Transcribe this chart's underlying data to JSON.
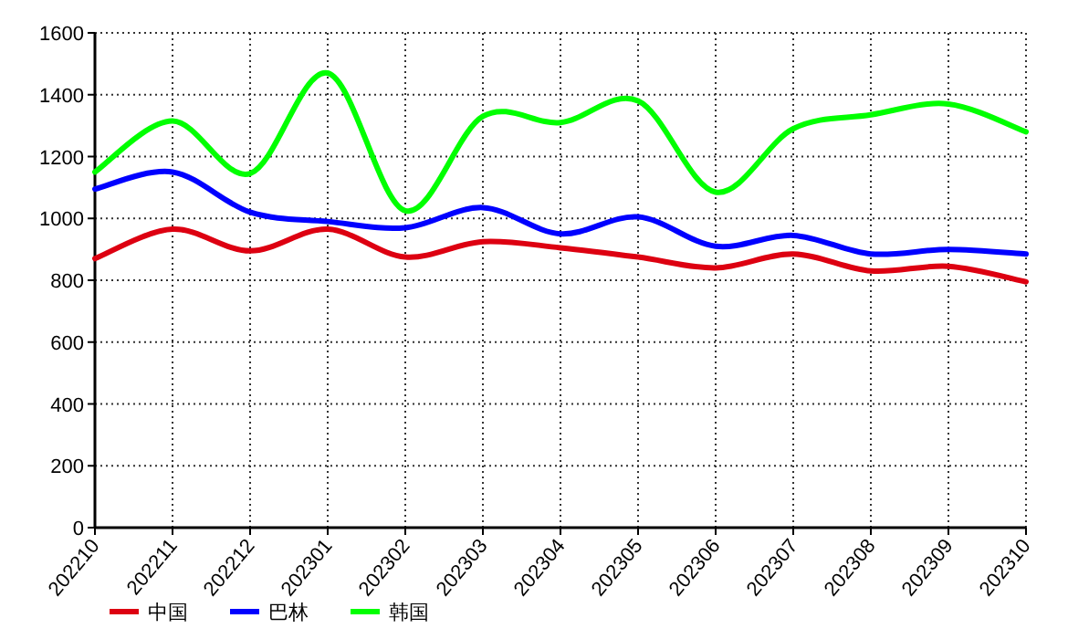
{
  "chart_data": {
    "type": "line",
    "categories": [
      "202210",
      "202211",
      "202212",
      "202301",
      "202302",
      "202303",
      "202304",
      "202305",
      "202306",
      "202307",
      "202308",
      "202309",
      "202310"
    ],
    "series": [
      {
        "name": "中国",
        "color": "#dd0011",
        "values": [
          870,
          965,
          895,
          965,
          875,
          925,
          905,
          875,
          840,
          885,
          830,
          845,
          795
        ]
      },
      {
        "name": "巴林",
        "color": "#0000ff",
        "values": [
          1095,
          1150,
          1020,
          990,
          970,
          1035,
          950,
          1005,
          910,
          945,
          885,
          900,
          885
        ]
      },
      {
        "name": "韩国",
        "color": "#00ff00",
        "values": [
          1150,
          1315,
          1145,
          1470,
          1025,
          1330,
          1310,
          1380,
          1085,
          1290,
          1335,
          1370,
          1280
        ]
      }
    ],
    "ylim": [
      0,
      1600
    ],
    "yticks": [
      0,
      200,
      400,
      600,
      800,
      1000,
      1200,
      1400,
      1600
    ],
    "grid": true,
    "legend": "bottom left",
    "marker": "none",
    "line_style": "solid"
  }
}
